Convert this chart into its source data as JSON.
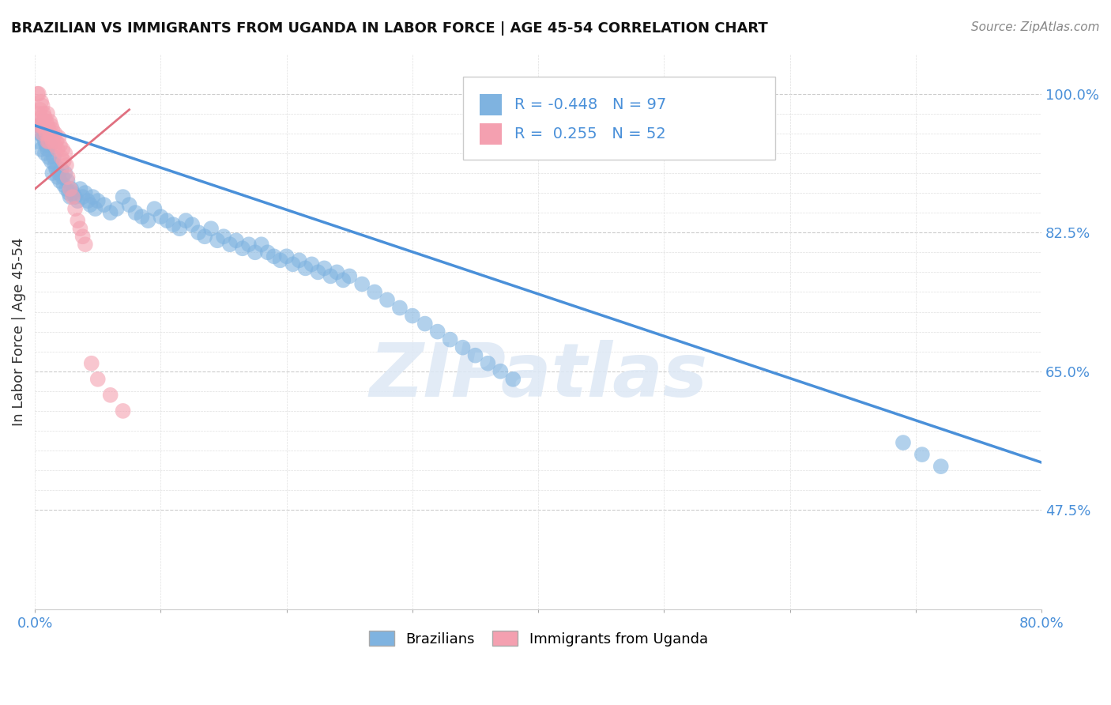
{
  "title": "BRAZILIAN VS IMMIGRANTS FROM UGANDA IN LABOR FORCE | AGE 45-54 CORRELATION CHART",
  "source": "Source: ZipAtlas.com",
  "ylabel": "In Labor Force | Age 45-54",
  "xlim": [
    0.0,
    0.8
  ],
  "ylim": [
    0.35,
    1.05
  ],
  "blue_color": "#7fb3e0",
  "pink_color": "#f4a0b0",
  "blue_line_color": "#4a90d9",
  "pink_line_color": "#e07080",
  "R_blue": -0.448,
  "N_blue": 97,
  "R_pink": 0.255,
  "N_pink": 52,
  "legend_label_blue": "Brazilians",
  "legend_label_pink": "Immigrants from Uganda",
  "watermark": "ZIPatlas",
  "blue_scatter_x": [
    0.002,
    0.003,
    0.004,
    0.005,
    0.006,
    0.007,
    0.008,
    0.008,
    0.009,
    0.01,
    0.01,
    0.011,
    0.012,
    0.013,
    0.014,
    0.015,
    0.016,
    0.017,
    0.018,
    0.019,
    0.02,
    0.021,
    0.022,
    0.023,
    0.024,
    0.025,
    0.026,
    0.027,
    0.028,
    0.029,
    0.03,
    0.032,
    0.034,
    0.036,
    0.038,
    0.04,
    0.042,
    0.044,
    0.046,
    0.048,
    0.05,
    0.055,
    0.06,
    0.065,
    0.07,
    0.075,
    0.08,
    0.085,
    0.09,
    0.095,
    0.1,
    0.105,
    0.11,
    0.115,
    0.12,
    0.125,
    0.13,
    0.135,
    0.14,
    0.145,
    0.15,
    0.155,
    0.16,
    0.165,
    0.17,
    0.175,
    0.18,
    0.185,
    0.19,
    0.195,
    0.2,
    0.205,
    0.21,
    0.215,
    0.22,
    0.225,
    0.23,
    0.235,
    0.24,
    0.245,
    0.25,
    0.26,
    0.27,
    0.28,
    0.29,
    0.3,
    0.31,
    0.32,
    0.33,
    0.34,
    0.35,
    0.36,
    0.37,
    0.38,
    0.69,
    0.705,
    0.72
  ],
  "blue_scatter_y": [
    0.94,
    0.96,
    0.95,
    0.93,
    0.955,
    0.945,
    0.925,
    0.94,
    0.935,
    0.945,
    0.93,
    0.92,
    0.935,
    0.915,
    0.9,
    0.92,
    0.91,
    0.905,
    0.895,
    0.9,
    0.89,
    0.905,
    0.895,
    0.885,
    0.9,
    0.88,
    0.89,
    0.875,
    0.87,
    0.88,
    0.875,
    0.87,
    0.865,
    0.88,
    0.87,
    0.875,
    0.865,
    0.86,
    0.87,
    0.855,
    0.865,
    0.86,
    0.85,
    0.855,
    0.87,
    0.86,
    0.85,
    0.845,
    0.84,
    0.855,
    0.845,
    0.84,
    0.835,
    0.83,
    0.84,
    0.835,
    0.825,
    0.82,
    0.83,
    0.815,
    0.82,
    0.81,
    0.815,
    0.805,
    0.81,
    0.8,
    0.81,
    0.8,
    0.795,
    0.79,
    0.795,
    0.785,
    0.79,
    0.78,
    0.785,
    0.775,
    0.78,
    0.77,
    0.775,
    0.765,
    0.77,
    0.76,
    0.75,
    0.74,
    0.73,
    0.72,
    0.71,
    0.7,
    0.69,
    0.68,
    0.67,
    0.66,
    0.65,
    0.64,
    0.56,
    0.545,
    0.53
  ],
  "pink_scatter_x": [
    0.002,
    0.003,
    0.003,
    0.004,
    0.004,
    0.005,
    0.005,
    0.005,
    0.006,
    0.006,
    0.006,
    0.007,
    0.007,
    0.008,
    0.008,
    0.009,
    0.009,
    0.01,
    0.01,
    0.01,
    0.011,
    0.011,
    0.012,
    0.012,
    0.013,
    0.013,
    0.014,
    0.014,
    0.015,
    0.016,
    0.016,
    0.017,
    0.018,
    0.019,
    0.02,
    0.021,
    0.022,
    0.023,
    0.024,
    0.025,
    0.026,
    0.028,
    0.03,
    0.032,
    0.034,
    0.036,
    0.038,
    0.04,
    0.045,
    0.05,
    0.06,
    0.07
  ],
  "pink_scatter_y": [
    1.0,
    0.975,
    1.0,
    0.96,
    0.98,
    0.99,
    0.97,
    0.96,
    0.985,
    0.965,
    0.95,
    0.975,
    0.96,
    0.97,
    0.955,
    0.965,
    0.95,
    0.96,
    0.94,
    0.975,
    0.955,
    0.94,
    0.965,
    0.95,
    0.96,
    0.945,
    0.955,
    0.94,
    0.945,
    0.95,
    0.935,
    0.94,
    0.93,
    0.945,
    0.935,
    0.92,
    0.93,
    0.915,
    0.925,
    0.91,
    0.895,
    0.88,
    0.87,
    0.855,
    0.84,
    0.83,
    0.82,
    0.81,
    0.66,
    0.64,
    0.62,
    0.6
  ],
  "blue_trend_x": [
    0.0,
    0.8
  ],
  "blue_trend_y": [
    0.96,
    0.535
  ],
  "pink_trend_x": [
    0.0,
    0.075
  ],
  "pink_trend_y": [
    0.88,
    0.98
  ]
}
